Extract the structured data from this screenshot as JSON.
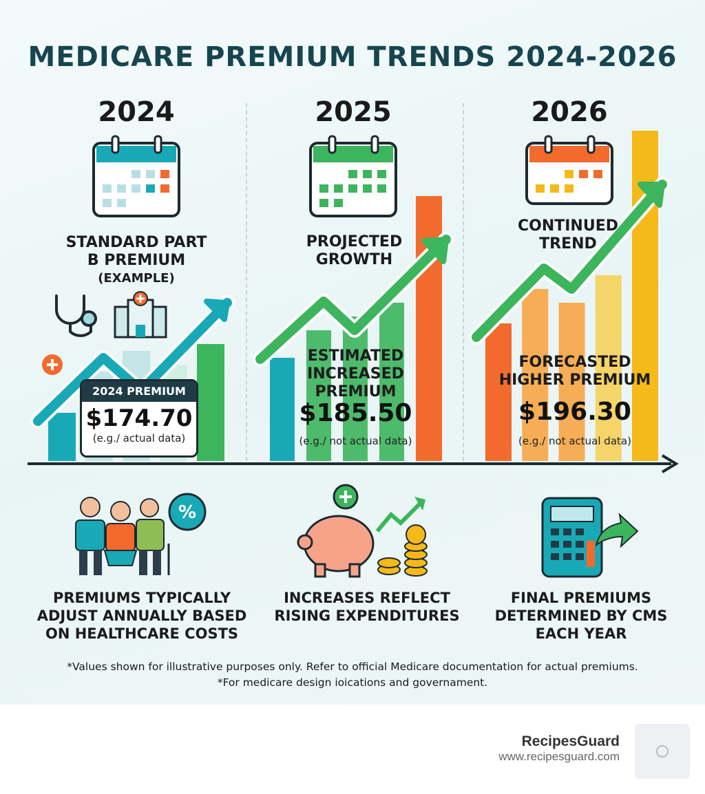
{
  "title": "MEDICARE PREMIUM TRENDS 2024-2026",
  "years": [
    "2024",
    "2025",
    "2026"
  ],
  "panels": [
    {
      "caption_lines": [
        "STANDARD PART",
        "B PREMIUM"
      ],
      "sub": "(EXAMPLE)",
      "card_label": "2024 PREMIUM",
      "price": "$174.70",
      "note": "(e.g./ actual data)"
    },
    {
      "caption_lines": [
        "PROJECTED",
        "GROWTH"
      ],
      "label_lines": [
        "ESTIMATED",
        "INCREASED",
        "PREMIUM"
      ],
      "price": "$185.50",
      "note": "(e.g./ not actual data)"
    },
    {
      "caption_lines": [
        "CONTINUED",
        "TREND"
      ],
      "label_lines": [
        "FORECASTED",
        "HIGHER PREMIUM"
      ],
      "price": "$196.30",
      "note": "(e.g./ not actual data)"
    }
  ],
  "chart_data": {
    "type": "bar",
    "title": "MEDICARE PREMIUM TRENDS 2024-2026",
    "categories": [
      "2024",
      "2025",
      "2026"
    ],
    "values": [
      174.7,
      185.5,
      196.3
    ],
    "value_labels": [
      "$174.70",
      "$185.50",
      "$196.30"
    ]
  },
  "colors": {
    "title": "#17454f",
    "teal": "#19a9b6",
    "green": "#3cb55c",
    "orange": "#f26b2d",
    "yellow": "#f6b91a",
    "dark": "#1f3b46"
  },
  "icons": [
    "calendar-icon",
    "stethoscope-icon",
    "hospital-icon",
    "medical-plus-icon",
    "seniors-icon",
    "percent-icon",
    "piggy-bank-icon",
    "coins-icon",
    "calculator-icon",
    "trend-arrow-icon"
  ],
  "bottom": [
    {
      "lines": [
        "PREMIUMS TYPICALLY",
        "ADJUST ANNUALLY BASED",
        "ON HEALTHCARE COSTS"
      ]
    },
    {
      "lines": [
        "INCREASES REFLECT",
        "RISING EXPENDITURES"
      ]
    },
    {
      "lines": [
        "FINAL PREMIUMS",
        "DETERMINED BY CMS",
        "EACH YEAR"
      ]
    }
  ],
  "disclaimer": [
    "*Values shown for illustrative purposes only. Refer to official Medicare documentation for actual premiums.",
    "*For medicare design ioications and governament."
  ],
  "brand": {
    "name": "RecipesGuard",
    "url": "www.recipesguard.com"
  }
}
